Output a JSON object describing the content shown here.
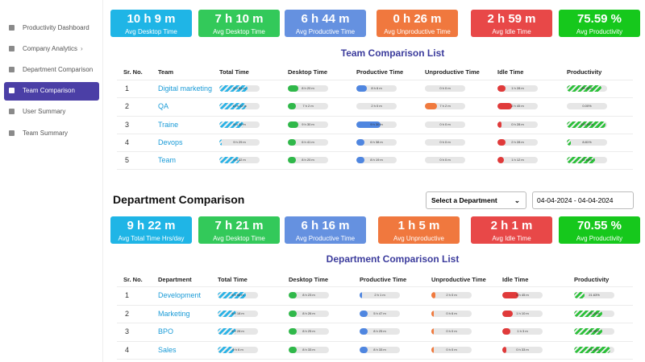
{
  "sidebar": {
    "items": [
      "Productivity Dashboard",
      "Company Analytics",
      "Department Comparison",
      "Team Comparison",
      "User Summary",
      "Team Summary"
    ]
  },
  "team_section": {
    "cards": [
      {
        "value": "10 h 9 m",
        "label": "Avg Desktop Time"
      },
      {
        "value": "7 h 10 m",
        "label": "Avg Desktop Time"
      },
      {
        "value": "6 h 44 m",
        "label": "Avg Productive Time"
      },
      {
        "value": "0 h 26 m",
        "label": "Avg Unproductive Time"
      },
      {
        "value": "2 h 59 m",
        "label": "Avg Idle Time"
      },
      {
        "value": "75.59 %",
        "label": "Avg Productivity"
      }
    ],
    "list_title": "Team Comparison List",
    "headers": [
      "Sr. No.",
      "Team",
      "Total Time",
      "Desktop Time",
      "Productive Time",
      "Unproductive Time",
      "Idle Time",
      "Productivity"
    ],
    "rows": [
      {
        "sr": 1,
        "name": "Digital marketing",
        "cells": [
          {
            "label": "9 h 54 m",
            "pct": 70
          },
          {
            "label": "8 h 20 m",
            "pct": 25
          },
          {
            "label": "8 h 6 m",
            "pct": 25
          },
          {
            "label": "0 h 0 m",
            "pct": 0
          },
          {
            "label": "1 h 28 m",
            "pct": 20
          },
          {
            "label": "88.42%",
            "pct": 85
          }
        ]
      },
      {
        "sr": 2,
        "name": "QA",
        "cells": [
          {
            "label": "10 h 22 m",
            "pct": 65
          },
          {
            "label": "7 h 2 m",
            "pct": 20
          },
          {
            "label": "2 h 0 m",
            "pct": 0
          },
          {
            "label": "7 h 2 m",
            "pct": 30
          },
          {
            "label": "2 h 45 m",
            "pct": 35
          },
          {
            "label": "0.00%",
            "pct": 0
          }
        ]
      },
      {
        "sr": 3,
        "name": "Traine",
        "cells": [
          {
            "label": "9 h 30 m",
            "pct": 60
          },
          {
            "label": "9 h 30 m",
            "pct": 25
          },
          {
            "label": "9 h 30 m",
            "pct": 60
          },
          {
            "label": "0 h 0 m",
            "pct": 0
          },
          {
            "label": "0 h 28 m",
            "pct": 10
          },
          {
            "label": "100.00%",
            "pct": 95
          }
        ]
      },
      {
        "sr": 4,
        "name": "Devops",
        "cells": [
          {
            "label": "9 h 29 m",
            "pct": 5
          },
          {
            "label": "6 h 41 m",
            "pct": 20
          },
          {
            "label": "6 h 38 m",
            "pct": 20
          },
          {
            "label": "0 h 0 m",
            "pct": 0
          },
          {
            "label": "2 h 28 m",
            "pct": 20
          },
          {
            "label": "8.81%",
            "pct": 10
          }
        ]
      },
      {
        "sr": 5,
        "name": "Team",
        "cells": [
          {
            "label": "9 h 32 m",
            "pct": 50
          },
          {
            "label": "8 h 20 m",
            "pct": 20
          },
          {
            "label": "8 h 19 m",
            "pct": 20
          },
          {
            "label": "0 h 0 m",
            "pct": 0
          },
          {
            "label": "1 h 12 m",
            "pct": 15
          },
          {
            "label": "72.63%",
            "pct": 70
          }
        ]
      }
    ]
  },
  "department_section": {
    "title": "Department Comparison",
    "select": "Select a Department",
    "date_range": "04-04-2024 - 04-04-2024",
    "cards": [
      {
        "value": "9 h 22 m",
        "label": "Avg Total Time Hrs/day"
      },
      {
        "value": "7 h 21 m",
        "label": "Avg Desktop Time"
      },
      {
        "value": "6 h 16 m",
        "label": "Avg Productive Time"
      },
      {
        "value": "1 h 5 m",
        "label": "Avg Unproductive"
      },
      {
        "value": "2 h 1 m",
        "label": "Avg Idle Time"
      },
      {
        "value": "70.55 %",
        "label": "Avg Productivity"
      }
    ],
    "list_title": "Department Comparison List",
    "headers": [
      "Sr. No.",
      "Department",
      "Total Time",
      "Desktop Time",
      "Productive Time",
      "Unproductive Time",
      "Idle Time",
      "Productivity"
    ],
    "rows": [
      {
        "sr": 1,
        "name": "Development",
        "cells": [
          {
            "label": "9 h 50 m",
            "pct": 70
          },
          {
            "label": "8 h 23 m",
            "pct": 20
          },
          {
            "label": "2 h 1 m",
            "pct": 5
          },
          {
            "label": "2 h 0 m",
            "pct": 10
          },
          {
            "label": "5 h 45 m",
            "pct": 40
          },
          {
            "label": "21.63%",
            "pct": 25
          }
        ]
      },
      {
        "sr": 2,
        "name": "Marketing",
        "cells": [
          {
            "label": "9 h 18 m",
            "pct": 45
          },
          {
            "label": "8 h 26 m",
            "pct": 20
          },
          {
            "label": "5 h 47 m",
            "pct": 20
          },
          {
            "label": "0 h 6 m",
            "pct": 5
          },
          {
            "label": "1 h 10 m",
            "pct": 25
          },
          {
            "label": "75.24%",
            "pct": 70
          }
        ]
      },
      {
        "sr": 3,
        "name": "BPO",
        "cells": [
          {
            "label": "9 h 28 m",
            "pct": 45
          },
          {
            "label": "8 h 25 m",
            "pct": 20
          },
          {
            "label": "8 h 25 m",
            "pct": 20
          },
          {
            "label": "0 h 0 m",
            "pct": 5
          },
          {
            "label": "1 h 3 m",
            "pct": 20
          },
          {
            "label": "78.85%",
            "pct": 70
          }
        ]
      },
      {
        "sr": 4,
        "name": "Sales",
        "cells": [
          {
            "label": "9 h 6 m",
            "pct": 40
          },
          {
            "label": "8 h 33 m",
            "pct": 20
          },
          {
            "label": "8 h 33 m",
            "pct": 20
          },
          {
            "label": "0 h 0 m",
            "pct": 5
          },
          {
            "label": "0 h 33 m",
            "pct": 10
          },
          {
            "label": "91.24%",
            "pct": 90
          }
        ]
      }
    ]
  }
}
